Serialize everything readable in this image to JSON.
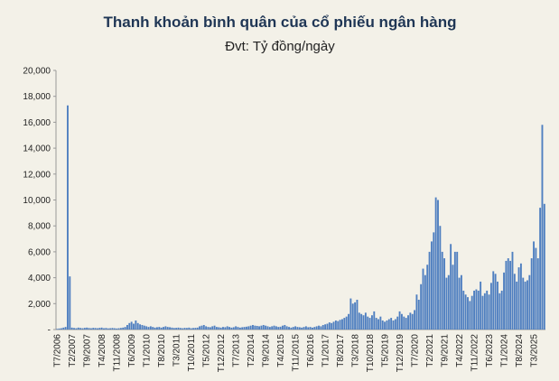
{
  "chart_data": {
    "type": "bar",
    "title": "Thanh khoản bình quân của cổ phiếu ngân hàng",
    "subtitle": "Đvt: Tỷ đồng/ngày",
    "color": "#4f7fc0",
    "ylim": [
      0,
      20000
    ],
    "yticks": [
      {
        "value": 0,
        "label": "-"
      },
      {
        "value": 2000,
        "label": "2,000"
      },
      {
        "value": 4000,
        "label": "4,000"
      },
      {
        "value": 6000,
        "label": "6,000"
      },
      {
        "value": 8000,
        "label": "8,000"
      },
      {
        "value": 10000,
        "label": "10,000"
      },
      {
        "value": 12000,
        "label": "12,000"
      },
      {
        "value": 14000,
        "label": "14,000"
      },
      {
        "value": 16000,
        "label": "16,000"
      },
      {
        "value": 18000,
        "label": "18,000"
      },
      {
        "value": 20000,
        "label": "20,000"
      }
    ],
    "categories": [
      "T7/2006",
      null,
      null,
      null,
      null,
      null,
      null,
      "T2/2007",
      null,
      null,
      null,
      null,
      null,
      null,
      "T9/2007",
      null,
      null,
      null,
      null,
      null,
      null,
      "T4/2008",
      null,
      null,
      null,
      null,
      null,
      null,
      "T11/2008",
      null,
      null,
      null,
      null,
      null,
      null,
      "T6/2009",
      null,
      null,
      null,
      null,
      null,
      null,
      "T1/2010",
      null,
      null,
      null,
      null,
      null,
      null,
      "T8/2010",
      null,
      null,
      null,
      null,
      null,
      null,
      "T3/2011",
      null,
      null,
      null,
      null,
      null,
      null,
      "T10/2011",
      null,
      null,
      null,
      null,
      null,
      null,
      "T5/2012",
      null,
      null,
      null,
      null,
      null,
      null,
      "T12/2012",
      null,
      null,
      null,
      null,
      null,
      null,
      "T7/2013",
      null,
      null,
      null,
      null,
      null,
      null,
      "T2/2014",
      null,
      null,
      null,
      null,
      null,
      null,
      "T9/2014",
      null,
      null,
      null,
      null,
      null,
      null,
      "T4/2015",
      null,
      null,
      null,
      null,
      null,
      null,
      "T11/2015",
      null,
      null,
      null,
      null,
      null,
      null,
      "T6/2016",
      null,
      null,
      null,
      null,
      null,
      null,
      "T1/2017",
      null,
      null,
      null,
      null,
      null,
      null,
      "T8/2017",
      null,
      null,
      null,
      null,
      null,
      null,
      "T3/2018",
      null,
      null,
      null,
      null,
      null,
      null,
      "T10/2018",
      null,
      null,
      null,
      null,
      null,
      null,
      "T5/2019",
      null,
      null,
      null,
      null,
      null,
      null,
      "T12/2019",
      null,
      null,
      null,
      null,
      null,
      null,
      "T7/2020",
      null,
      null,
      null,
      null,
      null,
      null,
      "T2/2021",
      null,
      null,
      null,
      null,
      null,
      null,
      "T9/2021",
      null,
      null,
      null,
      null,
      null,
      null,
      "T4/2022",
      null,
      null,
      null,
      null,
      null,
      null,
      "T11/2022",
      null,
      null,
      null,
      null,
      null,
      null,
      "T6/2023",
      null,
      null,
      null,
      null,
      null,
      null,
      "T1/2024",
      null,
      null,
      null,
      null,
      null,
      null,
      "T8/2024",
      null,
      null,
      null,
      null,
      null,
      null,
      "T3/2025",
      null,
      null,
      null,
      null,
      null
    ],
    "values": [
      50,
      80,
      100,
      150,
      200,
      17300,
      4100,
      150,
      120,
      100,
      150,
      120,
      100,
      130,
      150,
      120,
      100,
      130,
      120,
      100,
      130,
      150,
      100,
      120,
      90,
      100,
      120,
      100,
      80,
      100,
      120,
      150,
      200,
      350,
      500,
      600,
      450,
      700,
      500,
      400,
      350,
      300,
      250,
      200,
      250,
      200,
      150,
      180,
      200,
      150,
      200,
      250,
      200,
      180,
      150,
      120,
      130,
      150,
      120,
      100,
      130,
      120,
      150,
      100,
      120,
      130,
      150,
      250,
      300,
      350,
      250,
      200,
      180,
      250,
      300,
      200,
      180,
      150,
      200,
      180,
      250,
      200,
      150,
      180,
      250,
      200,
      150,
      180,
      200,
      220,
      250,
      300,
      350,
      300,
      280,
      250,
      300,
      350,
      300,
      250,
      200,
      250,
      300,
      250,
      200,
      220,
      300,
      350,
      250,
      200,
      150,
      200,
      250,
      200,
      180,
      150,
      200,
      250,
      180,
      200,
      150,
      200,
      250,
      300,
      250,
      350,
      400,
      450,
      550,
      500,
      600,
      700,
      650,
      750,
      800,
      900,
      1000,
      1200,
      2400,
      2000,
      2100,
      2300,
      1300,
      1200,
      1100,
      1300,
      1000,
      900,
      1100,
      1400,
      900,
      800,
      1000,
      700,
      600,
      700,
      800,
      900,
      700,
      800,
      1000,
      1400,
      1200,
      1000,
      900,
      1100,
      1300,
      1200,
      1500,
      2700,
      2300,
      3500,
      4700,
      4200,
      5000,
      6000,
      6800,
      7500,
      10200,
      10000,
      8000,
      6000,
      5500,
      4000,
      4200,
      6600,
      5000,
      6000,
      6000,
      4000,
      4200,
      3000,
      2700,
      2500,
      2200,
      2600,
      3000,
      3100,
      3000,
      3700,
      2600,
      2800,
      3000,
      2700,
      3600,
      4500,
      4300,
      3700,
      2800,
      3000,
      4400,
      5300,
      5500,
      5300,
      6000,
      4300,
      3700,
      4800,
      5100,
      4000,
      3700,
      3800,
      4200,
      5500,
      6800,
      6300,
      5500,
      9400,
      15800,
      9700
    ]
  }
}
